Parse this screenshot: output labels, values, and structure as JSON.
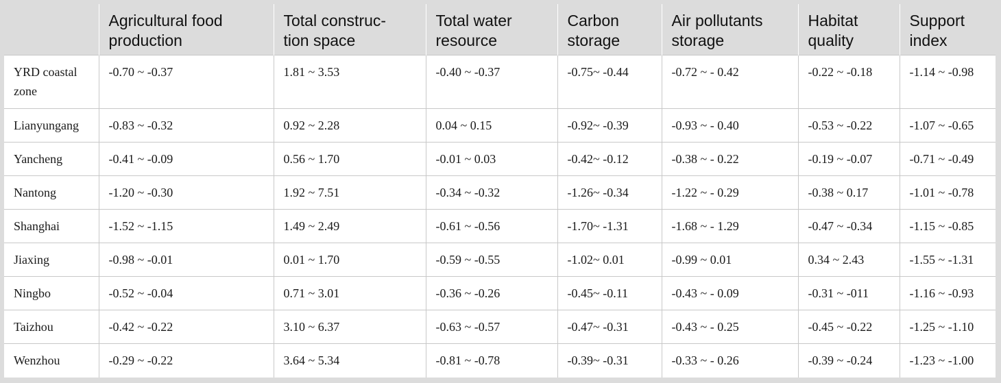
{
  "headers": [
    "",
    "Agricultural food production",
    "Total construc-tion space",
    "Total water resource",
    "Carbon storage",
    "Air pollutants storage",
    "Habitat quality",
    "Support index"
  ],
  "header_lines": [
    [
      "",
      ""
    ],
    [
      "Agricultural food",
      "production"
    ],
    [
      "Total construc-",
      "tion space"
    ],
    [
      "Total water",
      "resource"
    ],
    [
      "Carbon",
      "storage"
    ],
    [
      "Air pollutants",
      "storage"
    ],
    [
      "Habitat",
      "quality"
    ],
    [
      "Support",
      "index"
    ]
  ],
  "rows": [
    [
      "YRD coastal zone",
      "-0.70 ~ -0.37",
      "1.81 ~ 3.53",
      "-0.40 ~ -0.37",
      "-0.75~ -0.44",
      "-0.72 ~ - 0.42",
      "-0.22 ~ -0.18",
      "-1.14 ~ -0.98"
    ],
    [
      "Lianyungang",
      "-0.83 ~ -0.32",
      "0.92 ~ 2.28",
      "0.04 ~ 0.15",
      "-0.92~ -0.39",
      "-0.93 ~ - 0.40",
      "-0.53 ~ -0.22",
      "-1.07 ~ -0.65"
    ],
    [
      "Yancheng",
      "-0.41 ~ -0.09",
      "0.56 ~ 1.70",
      "-0.01 ~ 0.03",
      "-0.42~ -0.12",
      "-0.38 ~ - 0.22",
      "-0.19 ~ -0.07",
      "-0.71 ~ -0.49"
    ],
    [
      "Nantong",
      "-1.20 ~ -0.30",
      "1.92 ~ 7.51",
      "-0.34 ~ -0.32",
      "-1.26~ -0.34",
      "-1.22 ~ - 0.29",
      "-0.38 ~ 0.17",
      "-1.01 ~ -0.78"
    ],
    [
      "Shanghai",
      "-1.52 ~ -1.15",
      "1.49 ~ 2.49",
      "-0.61 ~ -0.56",
      "-1.70~ -1.31",
      "-1.68 ~ - 1.29",
      "-0.47 ~ -0.34",
      "-1.15 ~ -0.85"
    ],
    [
      "Jiaxing",
      "-0.98 ~ -0.01",
      "0.01 ~ 1.70",
      "-0.59 ~ -0.55",
      "-1.02~ 0.01",
      "-0.99 ~ 0.01",
      "0.34 ~ 2.43",
      "-1.55 ~ -1.31"
    ],
    [
      "Ningbo",
      "-0.52 ~ -0.04",
      "0.71 ~ 3.01",
      "-0.36 ~ -0.26",
      "-0.45~ -0.11",
      "-0.43 ~ - 0.09",
      "-0.31 ~ -011",
      "-1.16 ~ -0.93"
    ],
    [
      "Taizhou",
      "-0.42 ~ -0.22",
      "3.10 ~ 6.37",
      "-0.63 ~ -0.57",
      "-0.47~ -0.31",
      "-0.43 ~ - 0.25",
      "-0.45 ~ -0.22",
      "-1.25 ~ -1.10"
    ],
    [
      "Wenzhou",
      "-0.29 ~ -0.22",
      "3.64 ~ 5.34",
      "-0.81 ~ -0.78",
      "-0.39~ -0.31",
      "-0.33 ~ - 0.26",
      "-0.39 ~ -0.24",
      "-1.23 ~ -1.00"
    ]
  ]
}
